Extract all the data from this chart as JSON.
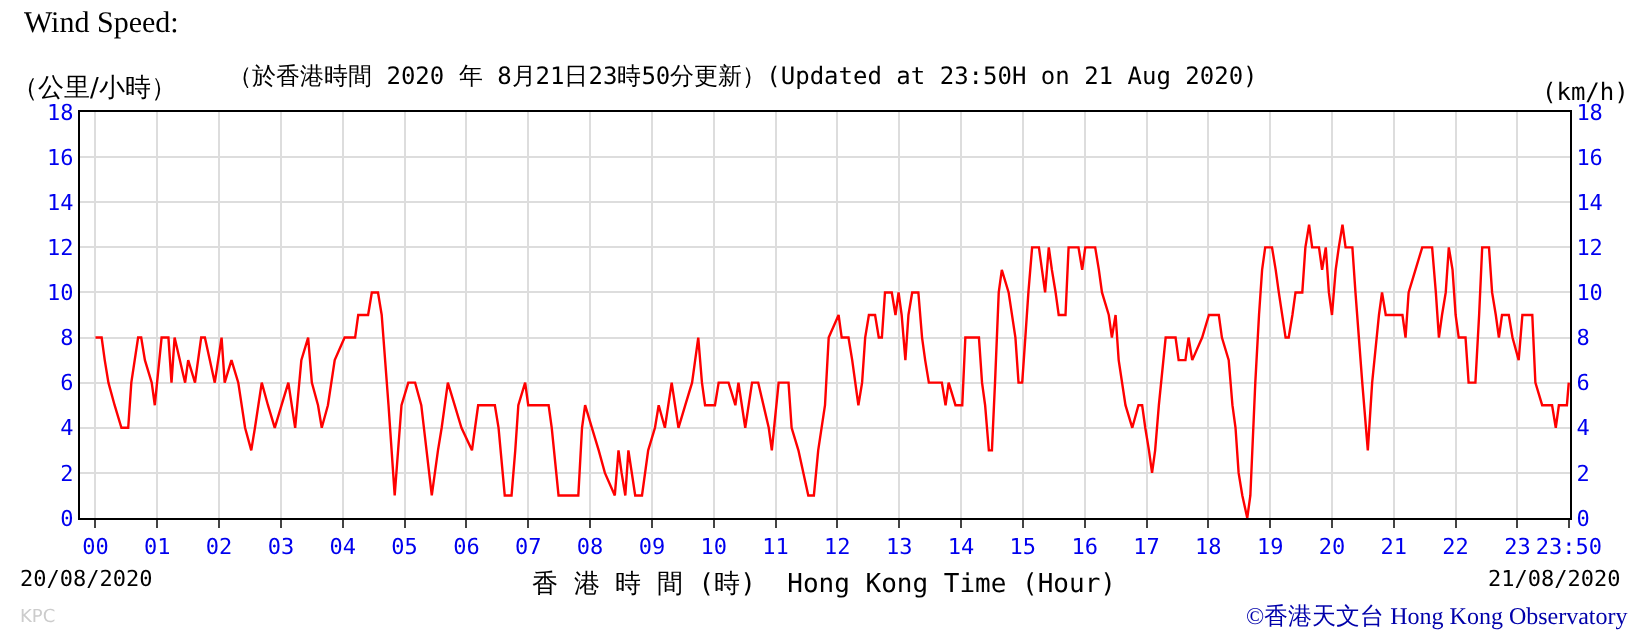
{
  "chart_data": {
    "type": "line",
    "title": "Wind Speed:",
    "subtitle": "（於香港時間 2020 年 8月21日23時50分更新）(Updated at 23:50H on 21 Aug 2020)",
    "ylabel": "（公里/小時）",
    "y2label": "(km/h)",
    "xlabel": "香 港 時 間 (時)  Hong Kong Time (Hour)",
    "annotations": [
      "20/08/2020",
      "21/08/2020",
      "©香港天文台 Hong Kong Observatory",
      "KPC"
    ],
    "x": [
      0.0,
      0.1,
      0.15,
      0.21,
      0.31,
      0.42,
      0.53,
      0.58,
      0.69,
      0.74,
      0.8,
      0.91,
      0.96,
      1.07,
      1.18,
      1.23,
      1.28,
      1.45,
      1.5,
      1.61,
      1.71,
      1.77,
      1.93,
      2.04,
      2.09,
      2.2,
      2.31,
      2.42,
      2.52,
      2.58,
      2.69,
      2.79,
      2.9,
      3.01,
      3.12,
      3.23,
      3.33,
      3.44,
      3.5,
      3.6,
      3.66,
      3.76,
      3.87,
      4.03,
      4.2,
      4.25,
      4.41,
      4.47,
      4.57,
      4.63,
      4.74,
      4.84,
      4.95,
      5.06,
      5.17,
      5.27,
      5.44,
      5.54,
      5.6,
      5.7,
      5.81,
      5.92,
      6.09,
      6.14,
      6.19,
      6.46,
      6.52,
      6.62,
      6.73,
      6.79,
      6.84,
      6.95,
      7.0,
      7.33,
      7.38,
      7.49,
      7.81,
      7.87,
      7.92,
      8.03,
      8.14,
      8.24,
      8.4,
      8.46,
      8.51,
      8.57,
      8.62,
      8.73,
      8.84,
      8.94,
      9.05,
      9.11,
      9.21,
      9.32,
      9.43,
      9.54,
      9.65,
      9.75,
      9.81,
      9.86,
      10.02,
      10.08,
      10.24,
      10.35,
      10.4,
      10.51,
      10.62,
      10.72,
      10.89,
      10.94,
      11.05,
      11.21,
      11.26,
      11.37,
      11.53,
      11.62,
      11.69,
      11.8,
      11.86,
      12.02,
      12.07,
      12.18,
      12.24,
      12.34,
      12.4,
      12.45,
      12.51,
      12.61,
      12.67,
      12.72,
      12.77,
      12.88,
      12.94,
      12.99,
      13.04,
      13.1,
      13.15,
      13.21,
      13.31,
      13.37,
      13.42,
      13.48,
      13.69,
      13.75,
      13.8,
      13.91,
      14.02,
      14.07,
      14.29,
      14.34,
      14.39,
      14.45,
      14.5,
      14.55,
      14.61,
      14.66,
      14.77,
      14.88,
      14.93,
      14.99,
      15.04,
      15.09,
      15.15,
      15.26,
      15.31,
      15.36,
      15.42,
      15.47,
      15.53,
      15.58,
      15.69,
      15.74,
      15.9,
      15.96,
      16.01,
      16.17,
      16.23,
      16.28,
      16.39,
      16.44,
      16.5,
      16.55,
      16.66,
      16.77,
      16.87,
      16.93,
      16.98,
      17.04,
      17.09,
      17.14,
      17.2,
      17.31,
      17.47,
      17.52,
      17.63,
      17.68,
      17.74,
      17.9,
      18.01,
      18.06,
      18.17,
      18.22,
      18.33,
      18.39,
      18.44,
      18.49,
      18.55,
      18.63,
      18.68,
      18.76,
      18.82,
      18.87,
      18.92,
      19.03,
      19.09,
      19.14,
      19.25,
      19.3,
      19.36,
      19.41,
      19.52,
      19.57,
      19.63,
      19.68,
      19.79,
      19.84,
      19.9,
      19.95,
      20.0,
      20.06,
      20.11,
      20.17,
      20.22,
      20.33,
      20.38,
      20.49,
      20.58,
      20.65,
      20.76,
      20.81,
      20.87,
      21.14,
      21.19,
      21.24,
      21.35,
      21.46,
      21.62,
      21.68,
      21.73,
      21.78,
      21.84,
      21.89,
      21.95,
      22.0,
      22.05,
      22.16,
      22.21,
      22.32,
      22.38,
      22.43,
      22.54,
      22.59,
      22.65,
      22.7,
      22.75,
      22.86,
      22.92,
      23.02,
      23.08,
      23.24,
      23.29,
      23.4,
      23.56,
      23.62,
      23.67,
      23.8,
      23.83
    ],
    "series": [
      {
        "color": "#ff0000",
        "values": [
          8,
          8,
          7,
          6,
          5,
          4,
          4,
          6,
          8,
          8,
          7,
          6,
          5,
          8,
          8,
          6,
          8,
          6,
          7,
          6,
          8,
          8,
          6,
          8,
          6,
          7,
          6,
          4,
          3,
          4,
          6,
          5,
          4,
          5,
          6,
          4,
          7,
          8,
          6,
          5,
          4,
          5,
          7,
          8,
          8,
          9,
          9,
          10,
          10,
          9,
          5,
          1,
          5,
          6,
          6,
          5,
          1,
          3,
          4,
          6,
          5,
          4,
          3,
          4,
          5,
          5,
          4,
          1,
          1,
          3,
          5,
          6,
          5,
          5,
          4,
          1,
          1,
          4,
          5,
          4,
          3,
          2,
          1,
          3,
          2,
          1,
          3,
          1,
          1,
          3,
          4,
          5,
          4,
          6,
          4,
          5,
          6,
          8,
          6,
          5,
          5,
          6,
          6,
          5,
          6,
          4,
          6,
          6,
          4,
          3,
          6,
          6,
          4,
          3,
          1,
          1,
          3,
          5,
          8,
          9,
          8,
          8,
          7,
          5,
          6,
          8,
          9,
          9,
          8,
          8,
          10,
          10,
          9,
          10,
          9,
          7,
          9,
          10,
          10,
          8,
          7,
          6,
          6,
          5,
          6,
          5,
          5,
          8,
          8,
          6,
          5,
          3,
          3,
          6,
          10,
          11,
          10,
          8,
          6,
          6,
          8,
          10,
          12,
          12,
          11,
          10,
          12,
          11,
          10,
          9,
          9,
          12,
          12,
          11,
          12,
          12,
          11,
          10,
          9,
          8,
          9,
          7,
          5,
          4,
          5,
          5,
          4,
          3,
          2,
          3,
          5,
          8,
          8,
          7,
          7,
          8,
          7,
          8,
          9,
          9,
          9,
          8,
          7,
          5,
          4,
          2,
          1,
          0,
          1,
          6,
          9,
          11,
          12,
          12,
          11,
          10,
          8,
          8,
          9,
          10,
          10,
          12,
          13,
          12,
          12,
          11,
          12,
          10,
          9,
          11,
          12,
          13,
          12,
          12,
          10,
          6,
          3,
          6,
          9,
          10,
          9,
          9,
          8,
          10,
          11,
          12,
          12,
          10,
          8,
          9,
          10,
          12,
          11,
          9,
          8,
          8,
          6,
          6,
          9,
          12,
          12,
          10,
          9,
          8,
          9,
          9,
          8,
          7,
          9,
          9,
          6,
          5,
          5,
          4,
          5,
          5,
          6
        ]
      }
    ],
    "xlim": [
      -0.25,
      23.85
    ],
    "xticks": [
      {
        "value": 0,
        "label": "00"
      },
      {
        "value": 1,
        "label": "01"
      },
      {
        "value": 2,
        "label": "02"
      },
      {
        "value": 3,
        "label": "03"
      },
      {
        "value": 4,
        "label": "04"
      },
      {
        "value": 5,
        "label": "05"
      },
      {
        "value": 6,
        "label": "06"
      },
      {
        "value": 7,
        "label": "07"
      },
      {
        "value": 8,
        "label": "08"
      },
      {
        "value": 9,
        "label": "09"
      },
      {
        "value": 10,
        "label": "10"
      },
      {
        "value": 11,
        "label": "11"
      },
      {
        "value": 12,
        "label": "12"
      },
      {
        "value": 13,
        "label": "13"
      },
      {
        "value": 14,
        "label": "14"
      },
      {
        "value": 15,
        "label": "15"
      },
      {
        "value": 16,
        "label": "16"
      },
      {
        "value": 17,
        "label": "17"
      },
      {
        "value": 18,
        "label": "18"
      },
      {
        "value": 19,
        "label": "19"
      },
      {
        "value": 20,
        "label": "20"
      },
      {
        "value": 21,
        "label": "21"
      },
      {
        "value": 22,
        "label": "22"
      },
      {
        "value": 23,
        "label": "23"
      },
      {
        "value": 23.8333,
        "label": "23:50"
      }
    ],
    "ylim": [
      0,
      18
    ],
    "yticks": [
      0,
      2,
      4,
      6,
      8,
      10,
      12,
      14,
      16,
      18
    ],
    "y2lim": [
      0,
      18
    ],
    "y2ticks": [
      0,
      2,
      4,
      6,
      8,
      10,
      12,
      14,
      16,
      18
    ],
    "grid": true,
    "legend": false,
    "marker": "none",
    "line_style": "solid"
  }
}
